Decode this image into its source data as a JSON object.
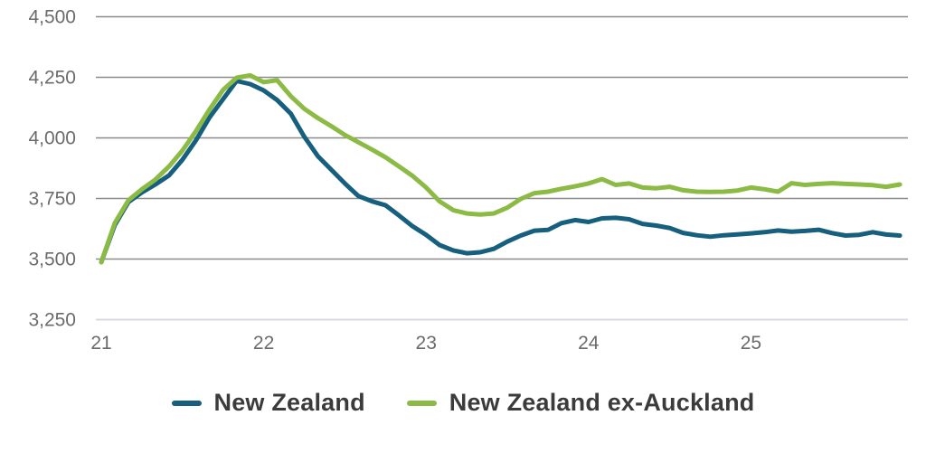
{
  "chart_data": {
    "type": "line",
    "title": "",
    "xlabel": "",
    "ylabel": "",
    "grid": "horizontal",
    "legend_position": "bottom",
    "ylim": [
      3250,
      4500
    ],
    "xlim": [
      21,
      26
    ],
    "yticks": [
      3250,
      3500,
      3750,
      4000,
      4250,
      4500
    ],
    "ytick_labels": [
      "3,250",
      "3,500",
      "3,750",
      "4,000",
      "4,250",
      "4,500"
    ],
    "xticks": [
      21,
      22,
      23,
      24,
      25
    ],
    "xtick_labels": [
      "21",
      "22",
      "23",
      "24",
      "25"
    ],
    "x": [
      21.0,
      21.083,
      21.167,
      21.25,
      21.333,
      21.417,
      21.5,
      21.583,
      21.667,
      21.75,
      21.833,
      21.917,
      22.0,
      22.083,
      22.167,
      22.25,
      22.333,
      22.417,
      22.5,
      22.583,
      22.667,
      22.75,
      22.833,
      22.917,
      23.0,
      23.083,
      23.167,
      23.25,
      23.333,
      23.417,
      23.5,
      23.583,
      23.667,
      23.75,
      23.833,
      23.917,
      24.0,
      24.083,
      24.167,
      24.25,
      24.333,
      24.417,
      24.5,
      24.583,
      24.667,
      24.75,
      24.833,
      24.917,
      25.0,
      25.083,
      25.167,
      25.25,
      25.333,
      25.417,
      25.5,
      25.583,
      25.667,
      25.75,
      25.833,
      25.917
    ],
    "series": [
      {
        "name": "New Zealand",
        "color": "#175f7e",
        "values": [
          3487,
          3640,
          3735,
          3775,
          3808,
          3845,
          3910,
          3990,
          4085,
          4160,
          4235,
          4222,
          4196,
          4156,
          4100,
          4005,
          3925,
          3868,
          3812,
          3760,
          3738,
          3722,
          3680,
          3635,
          3600,
          3558,
          3536,
          3524,
          3528,
          3542,
          3572,
          3597,
          3617,
          3620,
          3648,
          3661,
          3653,
          3668,
          3670,
          3664,
          3645,
          3638,
          3628,
          3608,
          3598,
          3592,
          3598,
          3602,
          3606,
          3611,
          3618,
          3613,
          3616,
          3621,
          3607,
          3597,
          3600,
          3611,
          3601,
          3597
        ]
      },
      {
        "name": "New Zealand ex-Auckland",
        "color": "#8cbb45",
        "values": [
          3487,
          3648,
          3742,
          3788,
          3828,
          3882,
          3948,
          4028,
          4118,
          4198,
          4248,
          4258,
          4230,
          4238,
          4172,
          4120,
          4082,
          4048,
          4012,
          3982,
          3952,
          3920,
          3882,
          3843,
          3795,
          3738,
          3702,
          3688,
          3684,
          3688,
          3712,
          3748,
          3772,
          3778,
          3790,
          3800,
          3812,
          3830,
          3806,
          3812,
          3795,
          3792,
          3798,
          3784,
          3778,
          3777,
          3778,
          3783,
          3795,
          3788,
          3778,
          3813,
          3806,
          3810,
          3813,
          3810,
          3808,
          3805,
          3798,
          3808
        ]
      }
    ]
  },
  "legend": {
    "items": [
      {
        "label": "New Zealand"
      },
      {
        "label": "New Zealand ex-Auckland"
      }
    ]
  },
  "colors": {
    "gridline": "#8b8b8b",
    "baseline": "#d9d9e4",
    "tick_text": "#6b6b6b",
    "legend_text": "#3b3b3b"
  }
}
